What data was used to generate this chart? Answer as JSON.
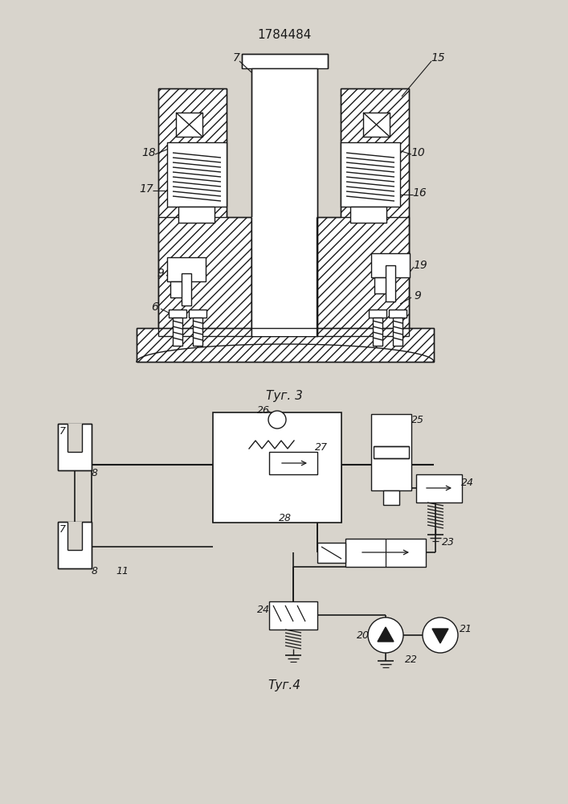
{
  "bg_color": "#d8d4cc",
  "lc": "#1a1a1a",
  "title": "1784484",
  "fig3_label": "Τуг. 3",
  "fig4_label": "Τуг.4"
}
